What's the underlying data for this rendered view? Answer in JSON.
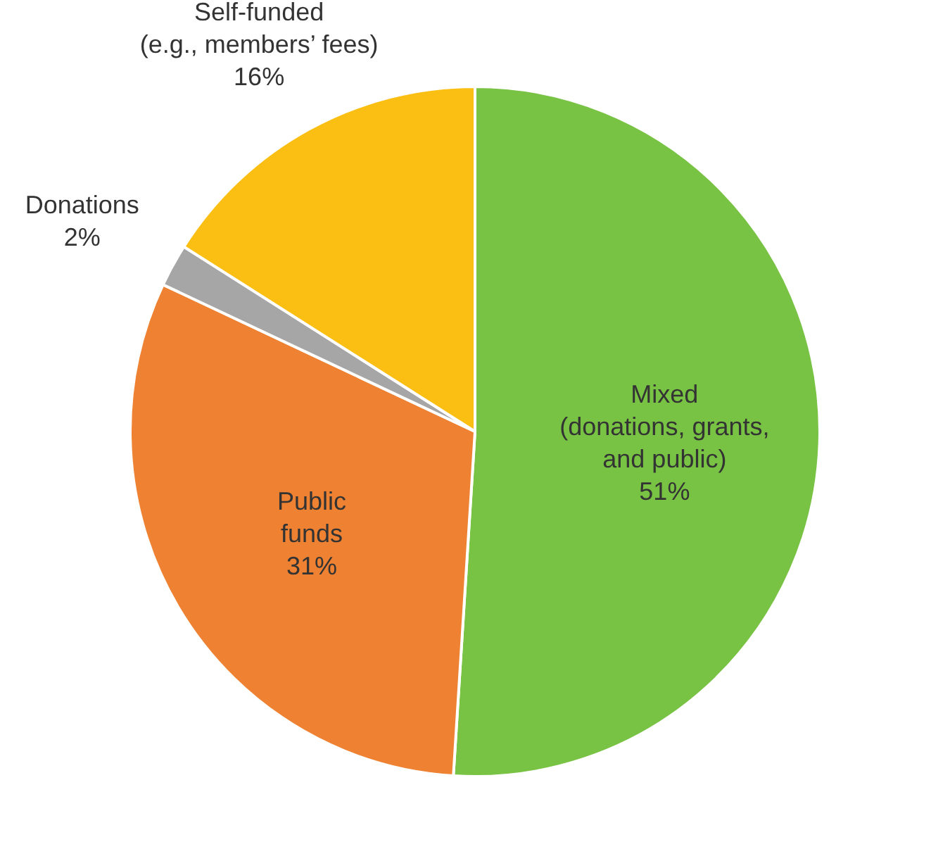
{
  "chart_data": {
    "type": "pie",
    "categories": [
      "Mixed\n(donations, grants,\nand public)",
      "Public\nfunds",
      "Donations",
      "Self-funded\n(e.g., members’ fees)"
    ],
    "values": [
      51,
      31,
      2,
      16
    ],
    "colors": [
      "#78c244",
      "#ee8232",
      "#a6a6a6",
      "#fbbf14"
    ],
    "value_labels": [
      "51%",
      "31%",
      "2%",
      "16%"
    ],
    "legend": false
  }
}
